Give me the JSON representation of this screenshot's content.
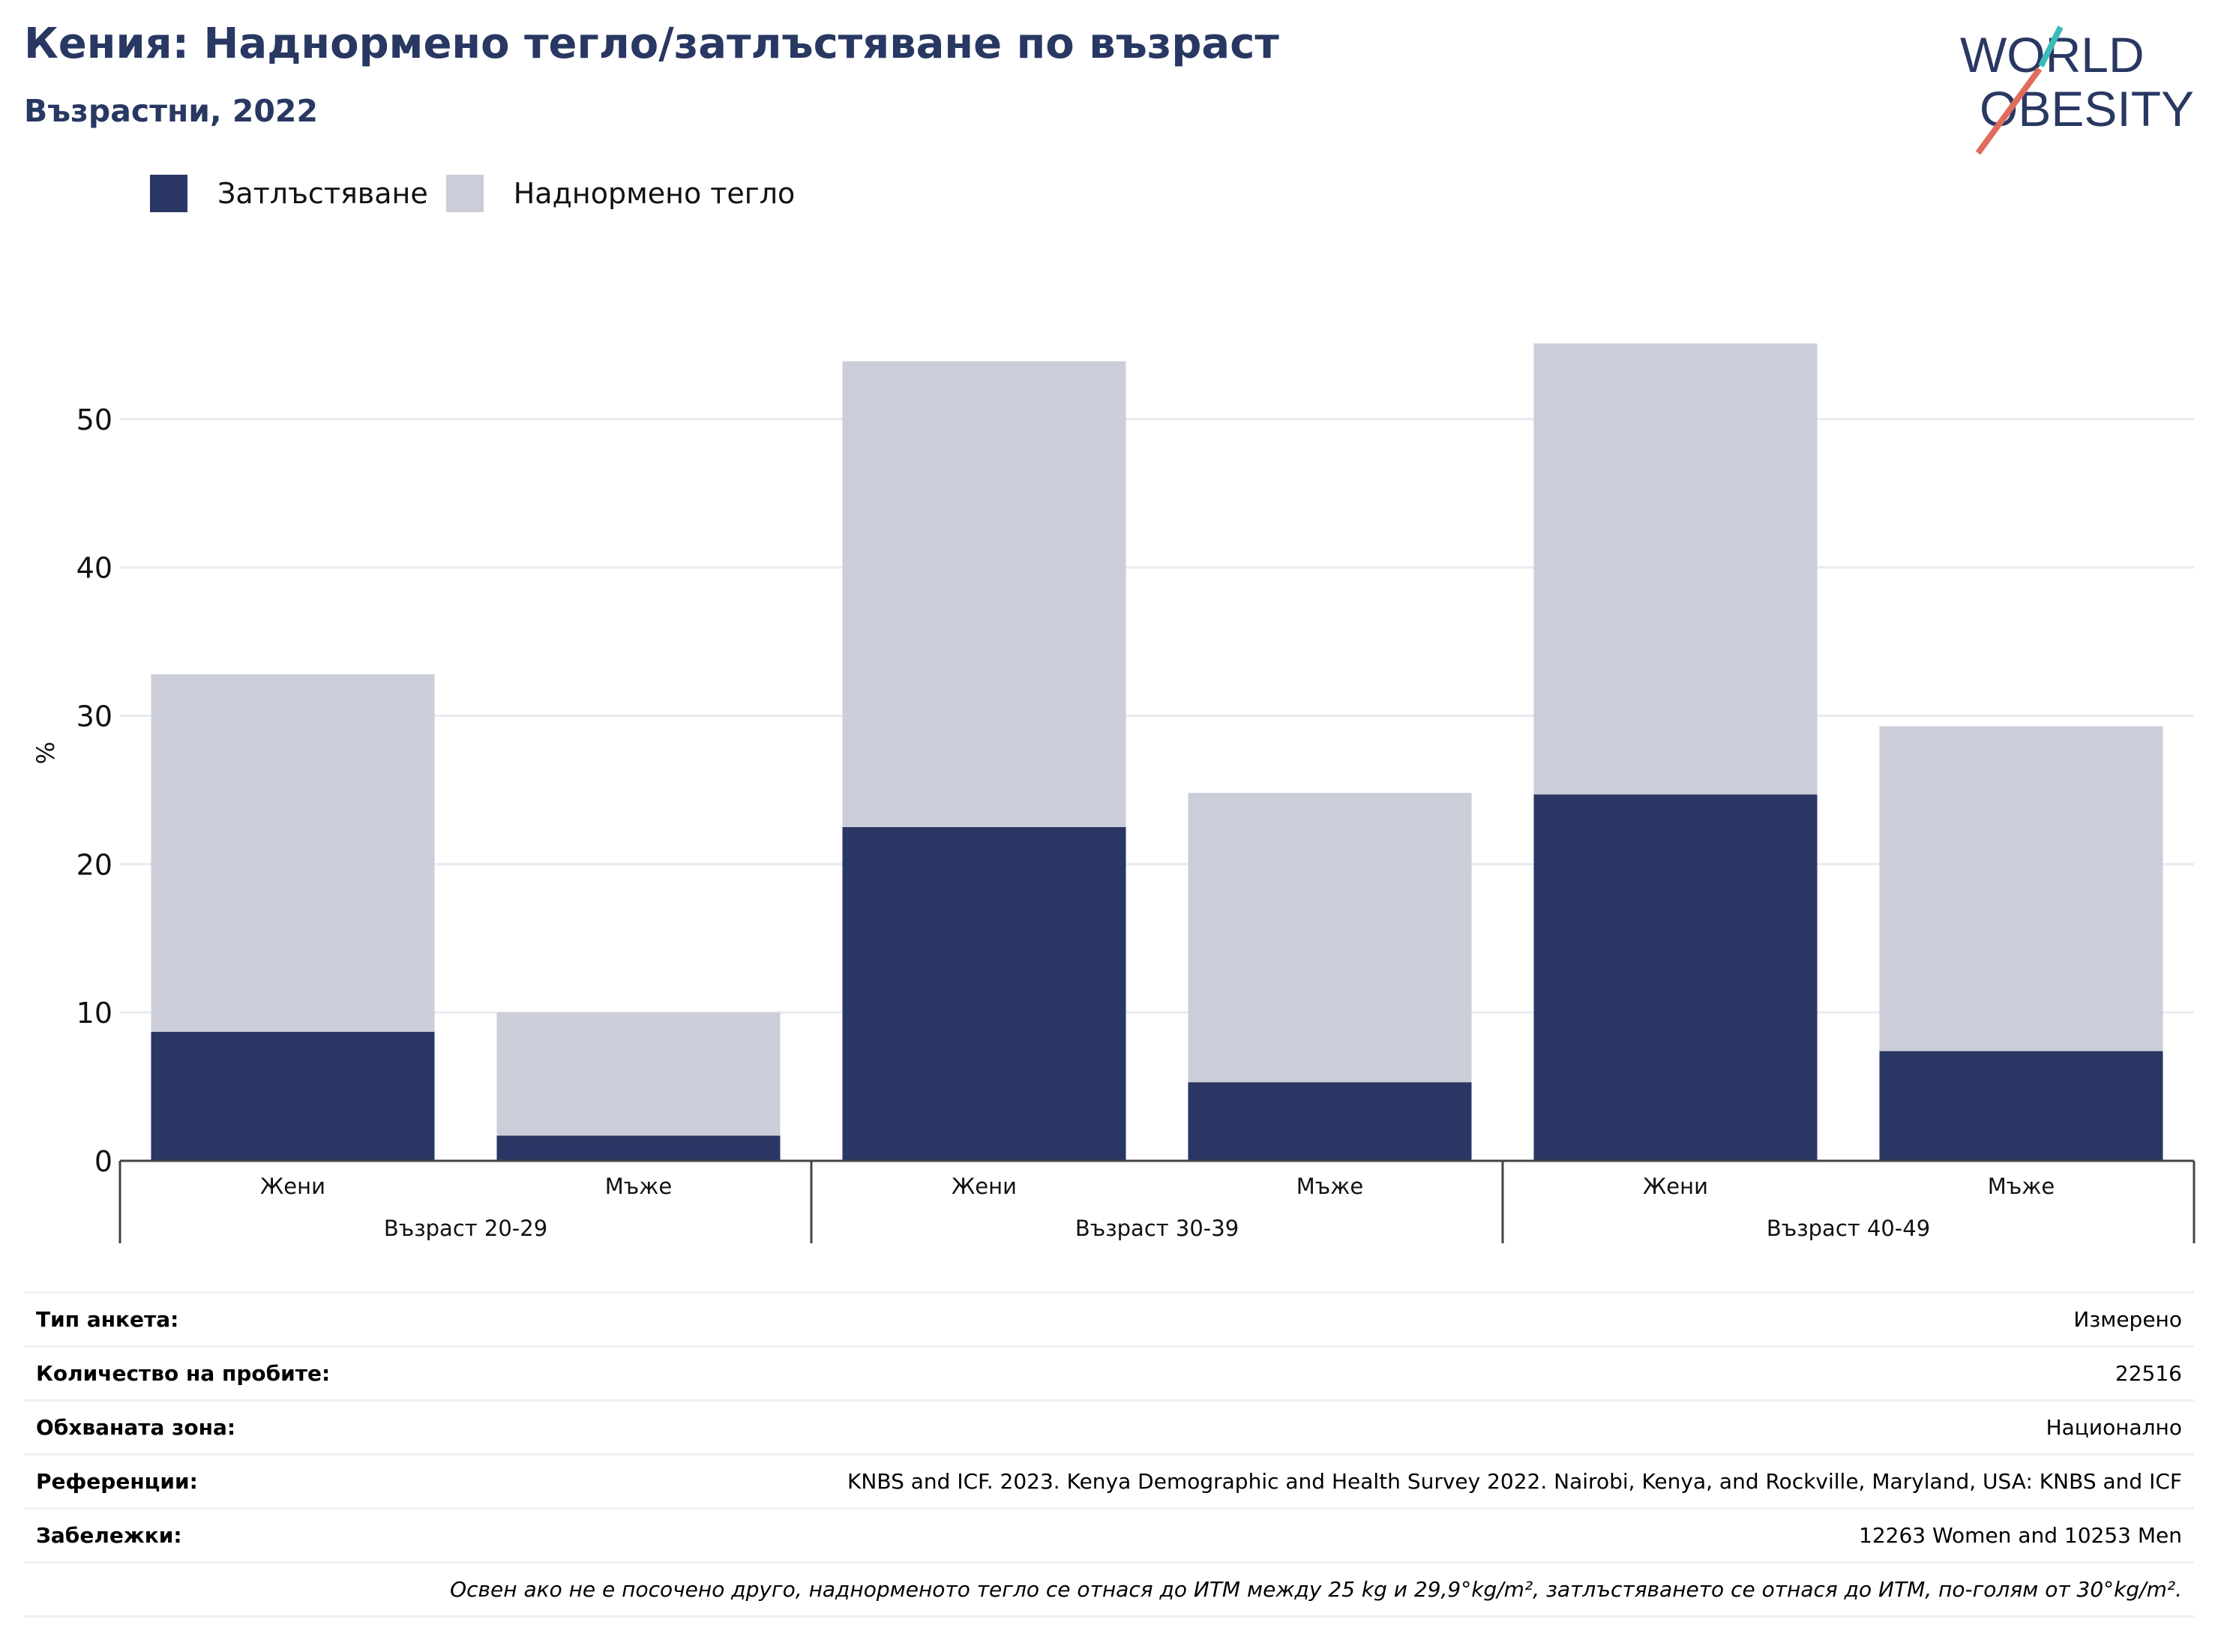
{
  "header": {
    "title": "Кения: Наднормено тегло/затлъстяване по възраст",
    "subtitle": "Възрастни, 2022"
  },
  "logo": {
    "line1": "WORLD",
    "line2": "OBESITY",
    "text_color": "#283862",
    "accent_teal": "#3bbcb8",
    "accent_coral": "#e06c5c"
  },
  "legend": [
    {
      "label": "Затлъстяване",
      "color": "#2a3663"
    },
    {
      "label": "Наднормено тегло",
      "color": "#cbcdd9"
    }
  ],
  "chart_data": {
    "type": "bar",
    "stacked": true,
    "ylabel": "%",
    "ylim": [
      0,
      55
    ],
    "yticks": [
      0,
      10,
      20,
      30,
      40,
      50
    ],
    "grid": true,
    "legend_position": "top-left",
    "categories": [
      "Жени",
      "Мъже",
      "Жени",
      "Мъже",
      "Жени",
      "Мъже"
    ],
    "groups": [
      {
        "label": "Възраст 20-29",
        "categories": [
          "Жени",
          "Мъже"
        ]
      },
      {
        "label": "Възраст 30-39",
        "categories": [
          "Жени",
          "Мъже"
        ]
      },
      {
        "label": "Възраст 40-49",
        "categories": [
          "Жени",
          "Мъже"
        ]
      }
    ],
    "series": [
      {
        "name": "Затлъстяване",
        "color": "#2a3663",
        "values": [
          8.7,
          1.7,
          22.5,
          5.3,
          24.7,
          7.4
        ]
      },
      {
        "name": "Наднормено тегло",
        "color": "#cbcdd9",
        "values": [
          24.1,
          8.3,
          31.4,
          19.5,
          30.4,
          21.9
        ]
      }
    ]
  },
  "meta": {
    "rows": [
      {
        "key": "Тип анкета:",
        "value": "Измерено"
      },
      {
        "key": "Количество на пробите:",
        "value": "22516"
      },
      {
        "key": "Обхваната зона:",
        "value": "Национално"
      },
      {
        "key": "Референции:",
        "value": "KNBS and ICF. 2023. Kenya Demographic and Health Survey 2022. Nairobi, Kenya, and Rockville, Maryland, USA: KNBS and ICF"
      },
      {
        "key": "Забележки:",
        "value": "12263 Women and 10253 Men"
      }
    ],
    "footnote": "Освен ако не е посочено друго, наднорменото тегло се отнася до ИТМ между 25 kg и 29,9°kg/m², затлъстяването се отнася до ИТМ, по-голям от 30°kg/m²."
  }
}
